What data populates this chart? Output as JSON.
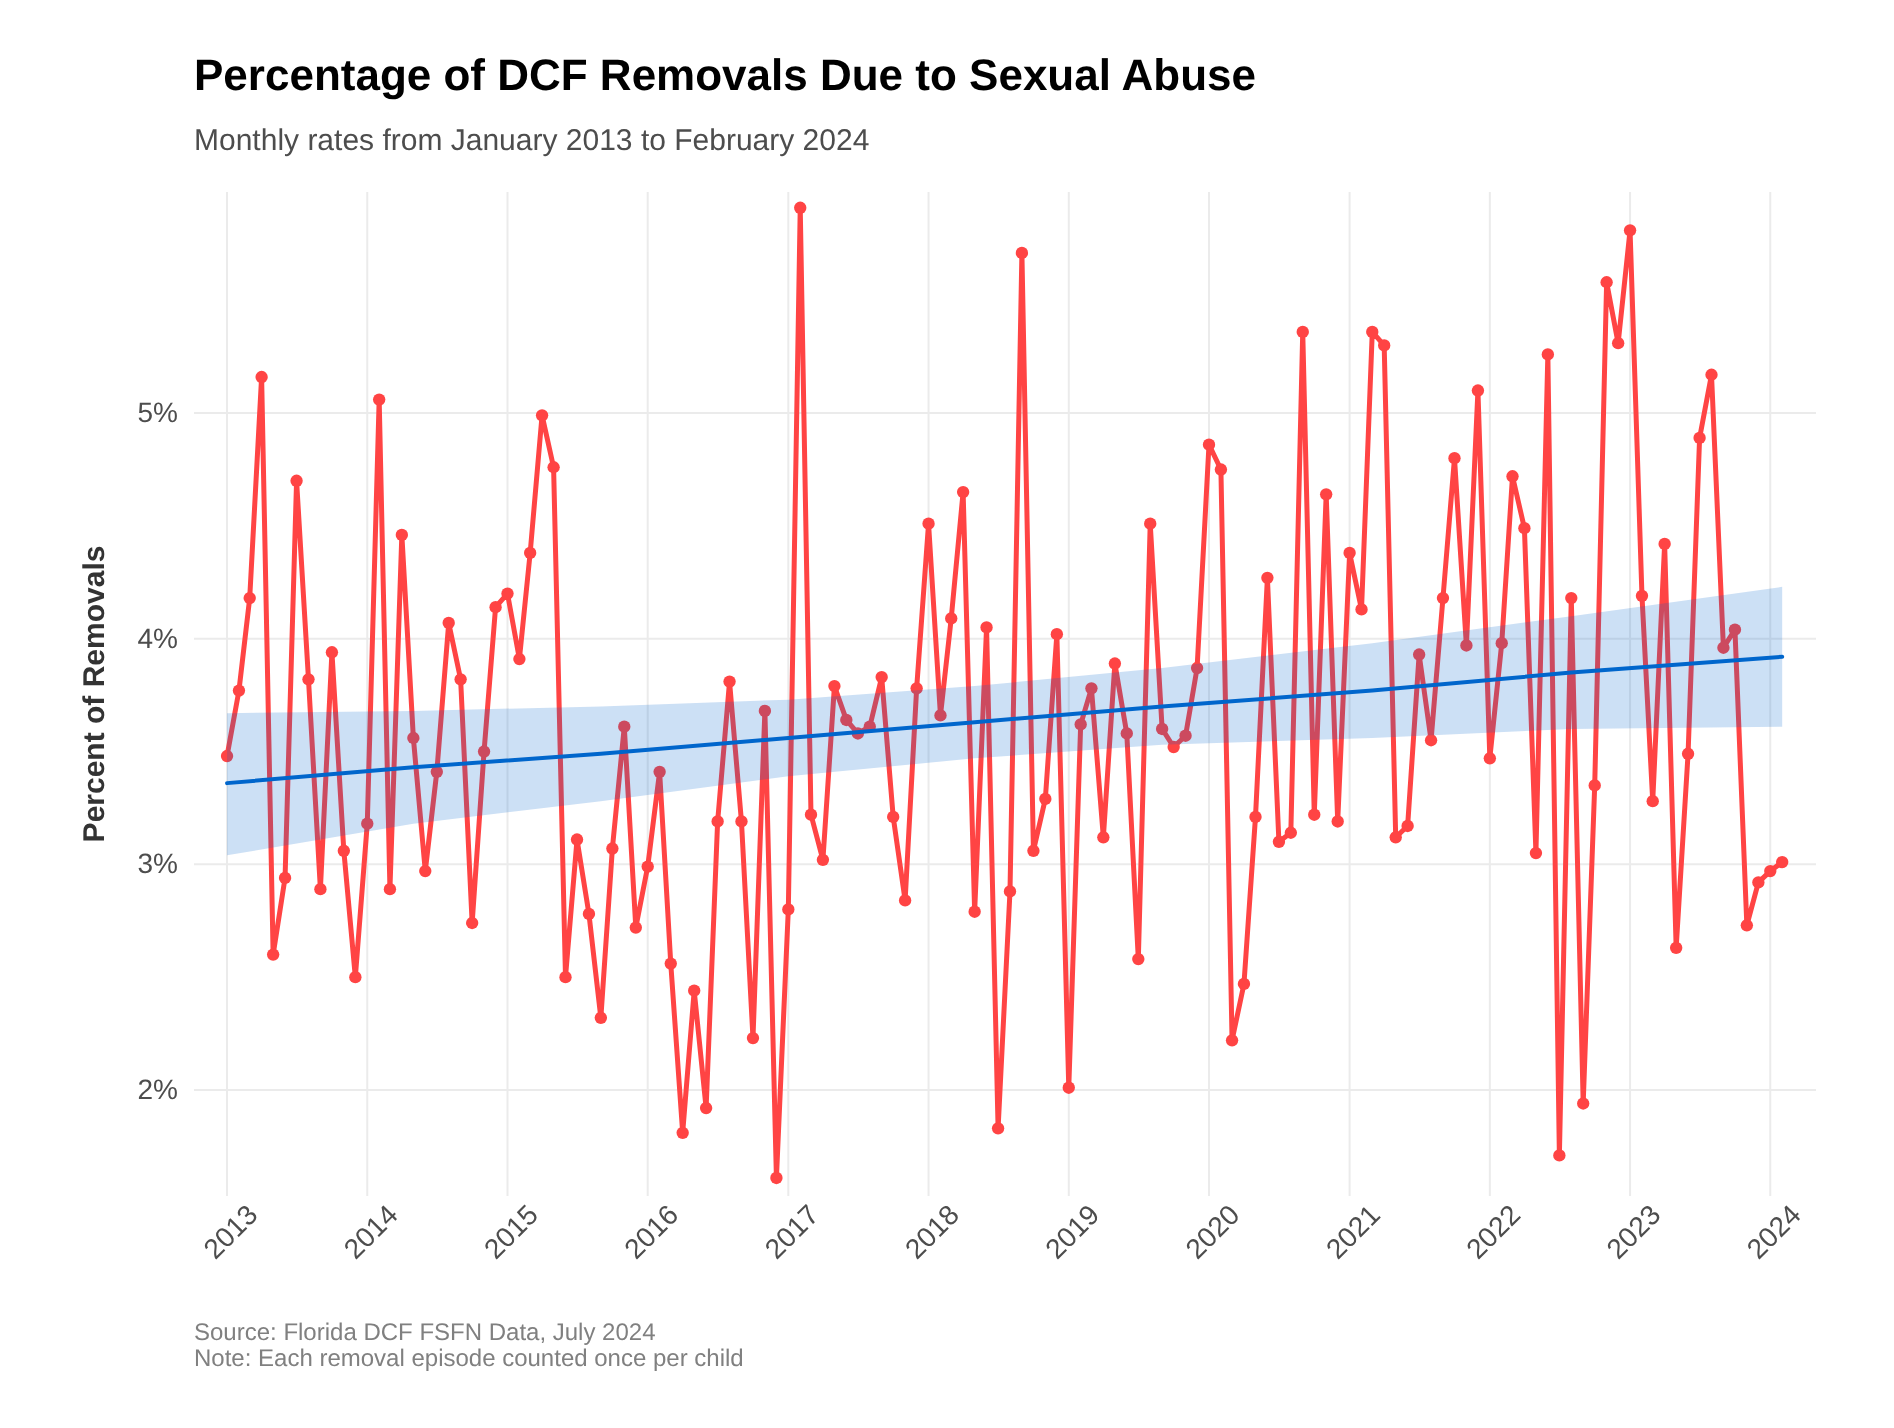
{
  "chart_data": {
    "type": "line",
    "title": "Percentage of DCF Removals Due to Sexual Abuse",
    "subtitle": "Monthly rates from January 2013 to February 2024",
    "ylabel": "Percent of Removals",
    "annotations": [
      "Source: Florida DCF FSFN Data, July 2024",
      "Note: Each removal episode counted once per child"
    ],
    "x": [
      "2013-01",
      "2013-02",
      "2013-03",
      "2013-04",
      "2013-05",
      "2013-06",
      "2013-07",
      "2013-08",
      "2013-09",
      "2013-10",
      "2013-11",
      "2013-12",
      "2014-01",
      "2014-02",
      "2014-03",
      "2014-04",
      "2014-05",
      "2014-06",
      "2014-07",
      "2014-08",
      "2014-09",
      "2014-10",
      "2014-11",
      "2014-12",
      "2015-01",
      "2015-02",
      "2015-03",
      "2015-04",
      "2015-05",
      "2015-06",
      "2015-07",
      "2015-08",
      "2015-09",
      "2015-10",
      "2015-11",
      "2015-12",
      "2016-01",
      "2016-02",
      "2016-03",
      "2016-04",
      "2016-05",
      "2016-06",
      "2016-07",
      "2016-08",
      "2016-09",
      "2016-10",
      "2016-11",
      "2016-12",
      "2017-01",
      "2017-02",
      "2017-03",
      "2017-04",
      "2017-05",
      "2017-06",
      "2017-07",
      "2017-08",
      "2017-09",
      "2017-10",
      "2017-11",
      "2017-12",
      "2018-01",
      "2018-02",
      "2018-03",
      "2018-04",
      "2018-05",
      "2018-06",
      "2018-07",
      "2018-08",
      "2018-09",
      "2018-10",
      "2018-11",
      "2018-12",
      "2019-01",
      "2019-02",
      "2019-03",
      "2019-04",
      "2019-05",
      "2019-06",
      "2019-07",
      "2019-08",
      "2019-09",
      "2019-10",
      "2019-11",
      "2019-12",
      "2020-01",
      "2020-02",
      "2020-03",
      "2020-04",
      "2020-05",
      "2020-06",
      "2020-07",
      "2020-08",
      "2020-09",
      "2020-10",
      "2020-11",
      "2020-12",
      "2021-01",
      "2021-02",
      "2021-03",
      "2021-04",
      "2021-05",
      "2021-06",
      "2021-07",
      "2021-08",
      "2021-09",
      "2021-10",
      "2021-11",
      "2021-12",
      "2022-01",
      "2022-02",
      "2022-03",
      "2022-04",
      "2022-05",
      "2022-06",
      "2022-07",
      "2022-08",
      "2022-09",
      "2022-10",
      "2022-11",
      "2022-12",
      "2023-01",
      "2023-02",
      "2023-03",
      "2023-04",
      "2023-05",
      "2023-06",
      "2023-07",
      "2023-08",
      "2023-09",
      "2023-10",
      "2023-11",
      "2023-12",
      "2024-01",
      "2024-02"
    ],
    "series": [
      {
        "color": "#ff4444",
        "values": [
          3.48,
          3.77,
          4.18,
          5.16,
          2.6,
          2.94,
          4.7,
          3.82,
          2.89,
          3.94,
          3.06,
          2.5,
          3.18,
          5.06,
          2.89,
          4.46,
          3.56,
          2.97,
          3.41,
          4.07,
          3.82,
          2.74,
          3.5,
          4.14,
          4.2,
          3.91,
          4.38,
          4.99,
          4.76,
          2.5,
          3.11,
          2.78,
          2.32,
          3.07,
          3.61,
          2.72,
          2.99,
          3.41,
          2.56,
          1.81,
          2.44,
          1.92,
          3.19,
          3.81,
          3.19,
          2.23,
          3.68,
          1.61,
          2.8,
          5.91,
          3.22,
          3.02,
          3.79,
          3.64,
          3.58,
          3.61,
          3.83,
          3.21,
          2.84,
          3.78,
          4.51,
          3.66,
          4.09,
          4.65,
          2.79,
          4.05,
          1.83,
          2.88,
          5.71,
          3.06,
          3.29,
          4.02,
          2.01,
          3.62,
          3.78,
          3.12,
          3.89,
          3.58,
          2.58,
          4.51,
          3.6,
          3.52,
          3.57,
          3.87,
          4.86,
          4.75,
          2.22,
          2.47,
          3.21,
          4.27,
          3.1,
          3.14,
          5.36,
          3.22,
          4.64,
          3.19,
          4.38,
          4.13,
          5.36,
          5.3,
          3.12,
          3.17,
          3.93,
          3.55,
          4.18,
          4.8,
          3.97,
          5.1,
          3.47,
          3.98,
          4.72,
          4.49,
          3.05,
          5.26,
          1.71,
          4.18,
          1.94,
          3.35,
          5.58,
          5.31,
          5.81,
          4.19,
          3.28,
          4.42,
          2.63,
          3.49,
          4.89,
          5.17,
          3.96,
          4.04,
          2.73,
          2.92,
          2.97,
          3.01
        ]
      },
      {
        "type": "line",
        "color": "#0066cc",
        "marker": "none",
        "x": [
          "2013-01",
          "2014-05",
          "2015-09",
          "2017-01",
          "2018-05",
          "2019-09",
          "2021-03",
          "2022-08",
          "2024-02"
        ],
        "values": [
          3.36,
          3.43,
          3.49,
          3.56,
          3.63,
          3.7,
          3.77,
          3.85,
          3.92
        ],
        "lower": [
          3.04,
          3.18,
          3.28,
          3.39,
          3.47,
          3.53,
          3.56,
          3.6,
          3.61
        ],
        "upper": [
          3.67,
          3.68,
          3.7,
          3.73,
          3.79,
          3.87,
          3.98,
          4.1,
          4.23
        ]
      }
    ],
    "xlim": [
      "2012-10-07",
      "2024-04-29"
    ],
    "xticks": [
      "2013",
      "2014",
      "2015",
      "2016",
      "2017",
      "2018",
      "2019",
      "2020",
      "2021",
      "2022",
      "2023",
      "2024"
    ],
    "ylim": [
      1.53,
      5.98
    ],
    "yticks": [
      {
        "value": 2,
        "label": "2%"
      },
      {
        "value": 3,
        "label": "3%"
      },
      {
        "value": 4,
        "label": "4%"
      },
      {
        "value": 5,
        "label": "5%"
      }
    ],
    "grid": true,
    "marker": "circle",
    "line_style": "solid"
  }
}
